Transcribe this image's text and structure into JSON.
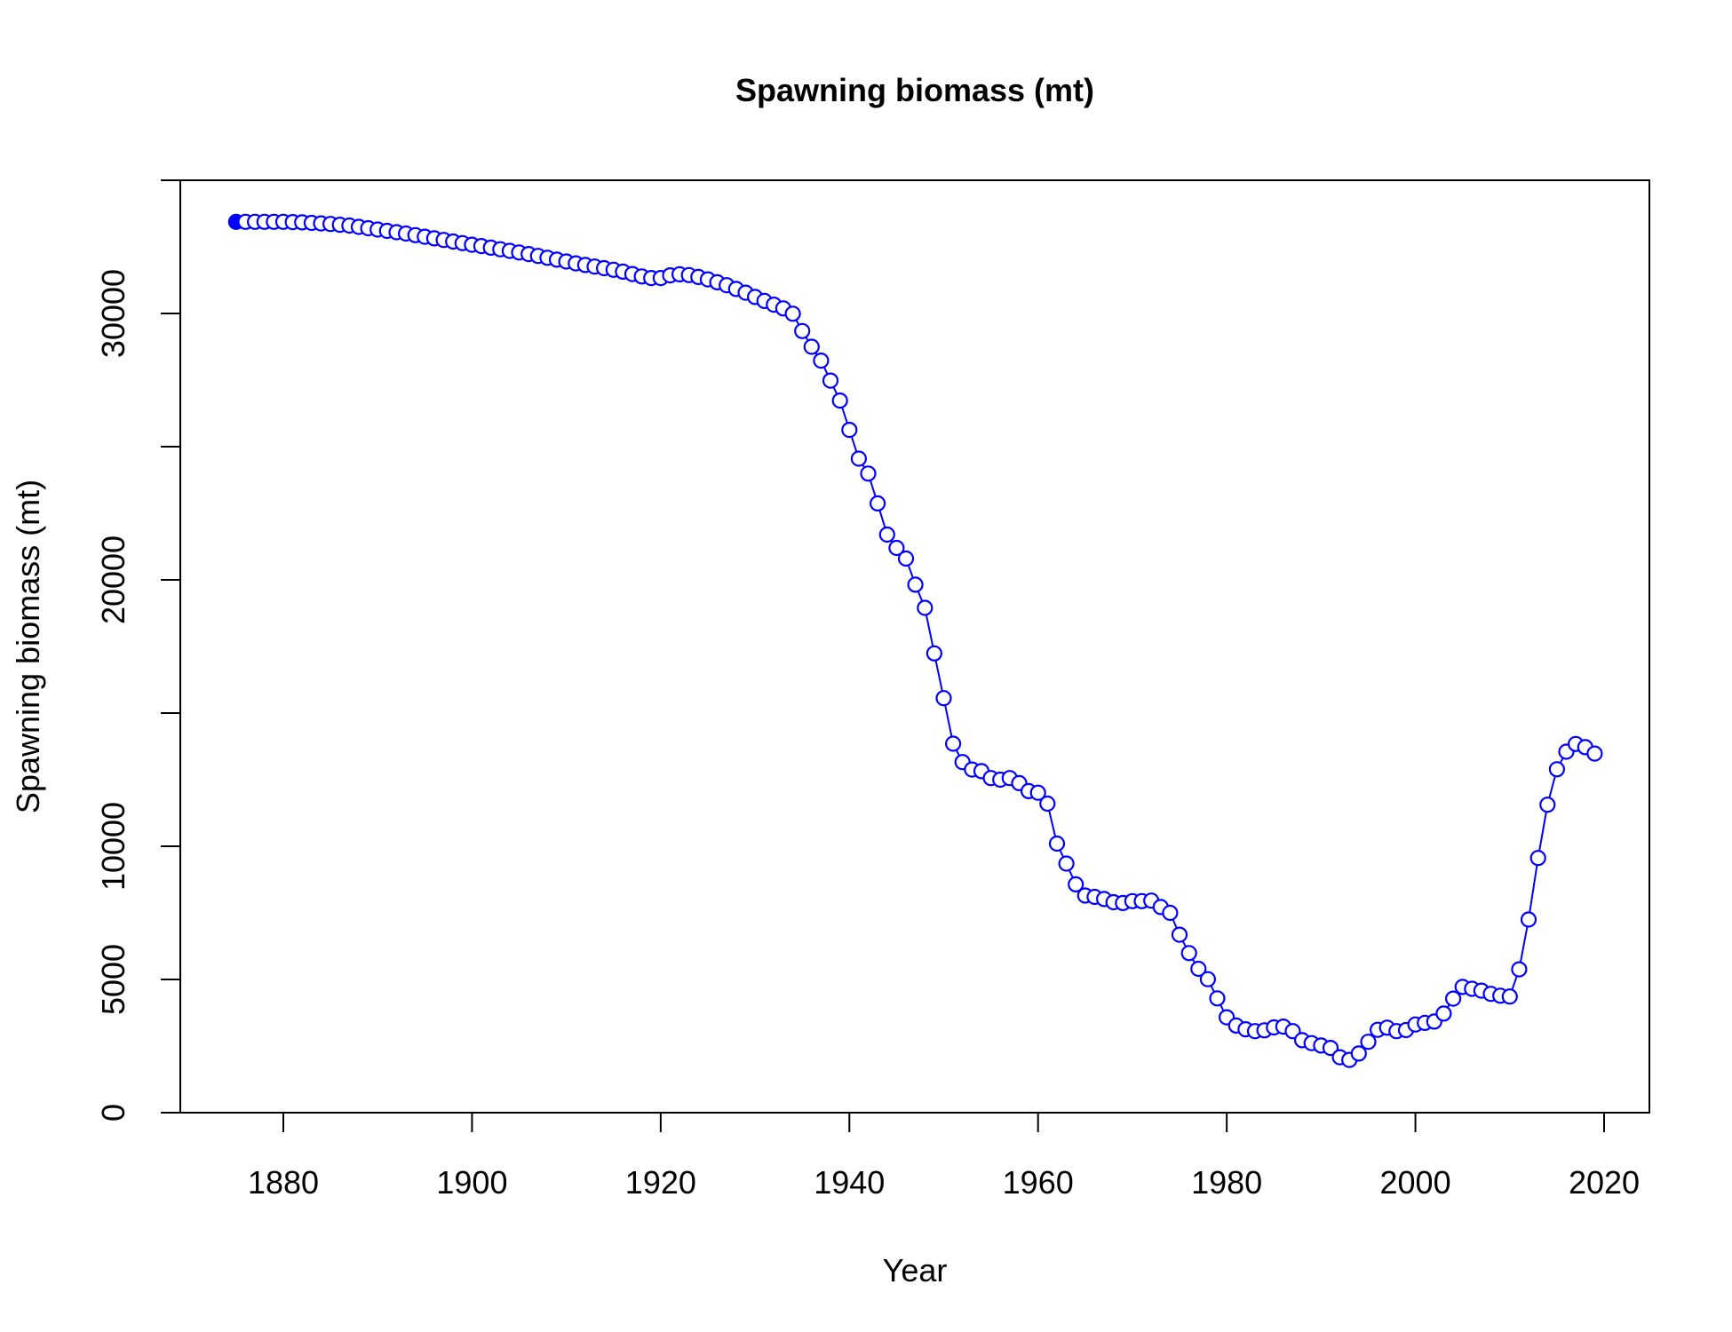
{
  "chart_data": {
    "type": "line",
    "title": "Spawning biomass (mt)",
    "xlabel": "Year",
    "ylabel": "Spawning biomass (mt)",
    "xlim": [
      1867,
      2023
    ],
    "ylim": [
      0,
      35000
    ],
    "xticks": [
      1880,
      1900,
      1920,
      1940,
      1960,
      1980,
      2000,
      2020
    ],
    "yticks": [
      0,
      5000,
      10000,
      15000,
      20000,
      25000,
      30000,
      35000
    ],
    "ytick_labels": [
      "0",
      "5000",
      "10000",
      "",
      "20000",
      "",
      "30000",
      ""
    ],
    "grid": false,
    "legend": "none",
    "series_color": "#0000FF",
    "first_point_filled": true,
    "series": [
      {
        "x": [
          1875,
          1876,
          1877,
          1878,
          1879,
          1880,
          1881,
          1882,
          1883,
          1884,
          1885,
          1886,
          1887,
          1888,
          1889,
          1890,
          1891,
          1892,
          1893,
          1894,
          1895,
          1896,
          1897,
          1898,
          1899,
          1900,
          1901,
          1902,
          1903,
          1904,
          1905,
          1906,
          1907,
          1908,
          1909,
          1910,
          1911,
          1912,
          1913,
          1914,
          1915,
          1916,
          1917,
          1918,
          1919,
          1920,
          1921,
          1922,
          1923,
          1924,
          1925,
          1926,
          1927,
          1928,
          1929,
          1930,
          1931,
          1932,
          1933,
          1934,
          1935,
          1936,
          1937,
          1938,
          1939,
          1940,
          1941,
          1942,
          1943,
          1944,
          1945,
          1946,
          1947,
          1948,
          1949,
          1950,
          1951,
          1952,
          1953,
          1954,
          1955,
          1956,
          1957,
          1958,
          1959,
          1960,
          1961,
          1962,
          1963,
          1964,
          1965,
          1966,
          1967,
          1968,
          1969,
          1970,
          1971,
          1972,
          1973,
          1974,
          1975,
          1976,
          1977,
          1978,
          1979,
          1980,
          1981,
          1982,
          1983,
          1984,
          1985,
          1986,
          1987,
          1988,
          1989,
          1990,
          1991,
          1992,
          1993,
          1994,
          1995,
          1996,
          1997,
          1998,
          1999,
          2000,
          2001,
          2002,
          2003,
          2004,
          2005,
          2006,
          2007,
          2008,
          2009,
          2010,
          2011,
          2012,
          2013,
          2014,
          2015,
          2016,
          2017,
          2018,
          2019
        ],
        "values": [
          33440,
          33440,
          33440,
          33440,
          33440,
          33440,
          33430,
          33420,
          33400,
          33380,
          33360,
          33330,
          33300,
          33250,
          33200,
          33150,
          33100,
          33050,
          33000,
          32940,
          32880,
          32820,
          32760,
          32700,
          32640,
          32580,
          32530,
          32470,
          32410,
          32350,
          32290,
          32230,
          32160,
          32090,
          32020,
          31950,
          31880,
          31820,
          31760,
          31700,
          31640,
          31570,
          31480,
          31390,
          31330,
          31330,
          31430,
          31470,
          31440,
          31370,
          31280,
          31170,
          31060,
          30920,
          30780,
          30620,
          30470,
          30330,
          30190,
          29990,
          29340,
          28750,
          28230,
          27480,
          26730,
          25630,
          24550,
          23990,
          22870,
          21700,
          21200,
          20800,
          19820,
          18950,
          17240,
          15560,
          13850,
          13160,
          12880,
          12820,
          12560,
          12500,
          12560,
          12370,
          12070,
          12010,
          11600,
          10100,
          9350,
          8570,
          8150,
          8100,
          8020,
          7900,
          7870,
          7940,
          7940,
          7960,
          7720,
          7500,
          6680,
          5990,
          5400,
          5010,
          4290,
          3580,
          3270,
          3130,
          3060,
          3090,
          3200,
          3230,
          3060,
          2720,
          2610,
          2520,
          2430,
          2080,
          1980,
          2220,
          2660,
          3110,
          3190,
          3060,
          3100,
          3310,
          3370,
          3420,
          3720,
          4280,
          4720,
          4650,
          4580,
          4460,
          4390,
          4360,
          5380,
          7250,
          9560,
          11560,
          12890,
          13550,
          13840,
          13720,
          13480
        ]
      }
    ]
  }
}
